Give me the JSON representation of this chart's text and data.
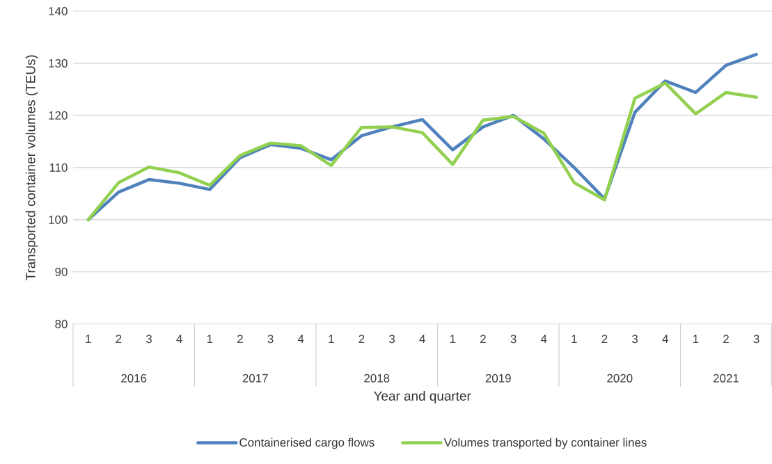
{
  "chart_data": {
    "type": "line",
    "xlabel": "Year and quarter",
    "ylabel": "Transported container volumes (TEUs)",
    "categories": [
      "1",
      "2",
      "3",
      "4",
      "1",
      "2",
      "3",
      "4",
      "1",
      "2",
      "3",
      "4",
      "1",
      "2",
      "3",
      "4",
      "1",
      "2",
      "3",
      "4",
      "1",
      "2",
      "3"
    ],
    "annotations": [
      "2016",
      "2017",
      "2018",
      "2019",
      "2020",
      "2021"
    ],
    "series": [
      {
        "name": "Containerised cargo flows",
        "color": "#4f81bd",
        "values": [
          100,
          105.3,
          107.7,
          107.0,
          105.8,
          111.9,
          114.4,
          113.7,
          111.5,
          116.1,
          117.8,
          119.2,
          113.4,
          117.8,
          120.0,
          115.5,
          110.0,
          104.0,
          120.6,
          126.6,
          124.4,
          129.6,
          131.7
        ]
      },
      {
        "name": "Volumes transported by container lines",
        "color": "#92d050",
        "values": [
          100,
          107.1,
          110.1,
          109.0,
          106.6,
          112.3,
          114.7,
          114.2,
          110.4,
          117.7,
          117.8,
          116.7,
          110.6,
          119.1,
          119.8,
          116.6,
          107.1,
          103.8,
          123.3,
          126.2,
          120.3,
          124.4,
          123.5
        ]
      }
    ],
    "ylim": [
      80,
      140
    ],
    "yticks": [
      80,
      90,
      100,
      110,
      120,
      130,
      140
    ],
    "grid": "y",
    "legend": "bottom",
    "marker": "none",
    "line_style": "solid"
  }
}
